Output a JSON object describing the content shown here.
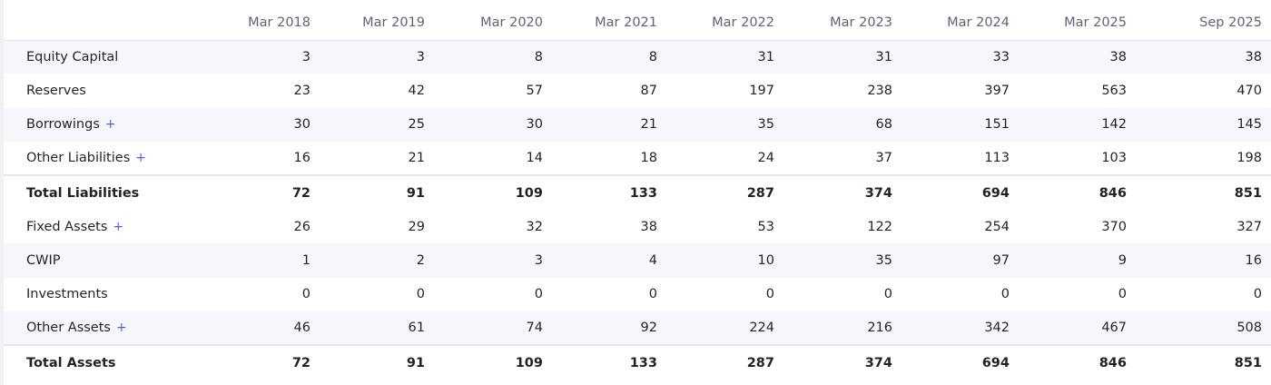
{
  "columns": [
    "Mar 2018",
    "Mar 2019",
    "Mar 2020",
    "Mar 2021",
    "Mar 2022",
    "Mar 2023",
    "Mar 2024",
    "Mar 2025",
    "Sep 2025"
  ],
  "expand_symbol": "+",
  "rows": [
    {
      "label": "Equity Capital",
      "values": [
        "3",
        "3",
        "8",
        "8",
        "31",
        "31",
        "33",
        "38",
        "38"
      ]
    },
    {
      "label": "Reserves",
      "values": [
        "23",
        "42",
        "57",
        "87",
        "197",
        "238",
        "397",
        "563",
        "470"
      ]
    },
    {
      "label": "Borrowings",
      "values": [
        "30",
        "25",
        "30",
        "21",
        "35",
        "68",
        "151",
        "142",
        "145"
      ]
    },
    {
      "label": "Other Liabilities",
      "values": [
        "16",
        "21",
        "14",
        "18",
        "24",
        "37",
        "113",
        "103",
        "198"
      ]
    },
    {
      "label": "Total Liabilities",
      "values": [
        "72",
        "91",
        "109",
        "133",
        "287",
        "374",
        "694",
        "846",
        "851"
      ]
    },
    {
      "label": "Fixed Assets",
      "values": [
        "26",
        "29",
        "32",
        "38",
        "53",
        "122",
        "254",
        "370",
        "327"
      ]
    },
    {
      "label": "CWIP",
      "values": [
        "1",
        "2",
        "3",
        "4",
        "10",
        "35",
        "97",
        "9",
        "16"
      ]
    },
    {
      "label": "Investments",
      "values": [
        "0",
        "0",
        "0",
        "0",
        "0",
        "0",
        "0",
        "0",
        "0"
      ]
    },
    {
      "label": "Other Assets",
      "values": [
        "46",
        "61",
        "74",
        "92",
        "224",
        "216",
        "342",
        "467",
        "508"
      ]
    },
    {
      "label": "Total Assets",
      "values": [
        "72",
        "91",
        "109",
        "133",
        "287",
        "374",
        "694",
        "846",
        "851"
      ]
    }
  ]
}
